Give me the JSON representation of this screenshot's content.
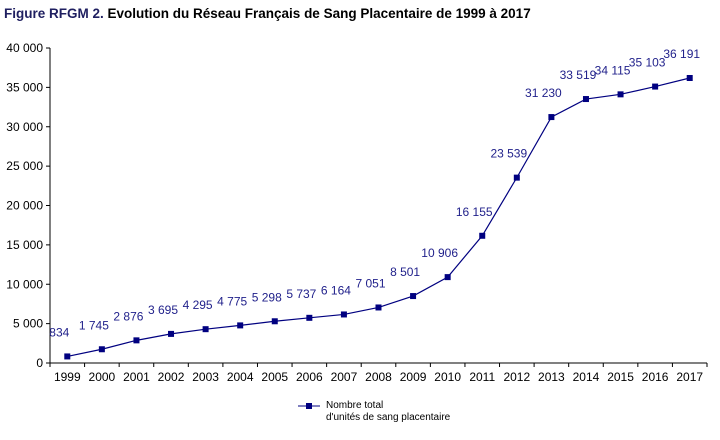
{
  "title": {
    "prefix": "Figure RFGM 2. ",
    "main": "Evolution du Réseau Français de Sang Placentaire de 1999 à 2017"
  },
  "colors": {
    "series": "#000080",
    "labels": "#1f1f8a",
    "axis": "#000000"
  },
  "chart_data": {
    "type": "line",
    "title": "Evolution du Réseau Français de Sang Placentaire de 1999 à 2017",
    "xlabel": "",
    "ylabel": "",
    "categories": [
      "1999",
      "2000",
      "2001",
      "2002",
      "2003",
      "2004",
      "2005",
      "2006",
      "2007",
      "2008",
      "2009",
      "2010",
      "2011",
      "2012",
      "2013",
      "2014",
      "2015",
      "2016",
      "2017"
    ],
    "series": [
      {
        "name": "Nombre total d'unités de sang placentaire",
        "values": [
          834,
          1745,
          2876,
          3695,
          4295,
          4775,
          5298,
          5737,
          6164,
          7051,
          8501,
          10906,
          16155,
          23539,
          31230,
          33519,
          34115,
          35103,
          36191
        ],
        "labels": [
          "834",
          "1 745",
          "2 876",
          "3 695",
          "4 295",
          "4 775",
          "5 298",
          "5 737",
          "6 164",
          "7 051",
          "8 501",
          "10 906",
          "16 155",
          "23 539",
          "31 230",
          "33 519",
          "34 115",
          "35 103",
          "36 191"
        ],
        "marker": "square"
      }
    ],
    "ylim": [
      0,
      40000
    ],
    "yticks": [
      "0",
      "5 000",
      "10 000",
      "15 000",
      "20 000",
      "25 000",
      "30 000",
      "35 000",
      "40 000"
    ],
    "grid": false,
    "legend": "bottom-center",
    "legend_lines": [
      "Nombre total",
      "d'unités de sang placentaire"
    ]
  }
}
